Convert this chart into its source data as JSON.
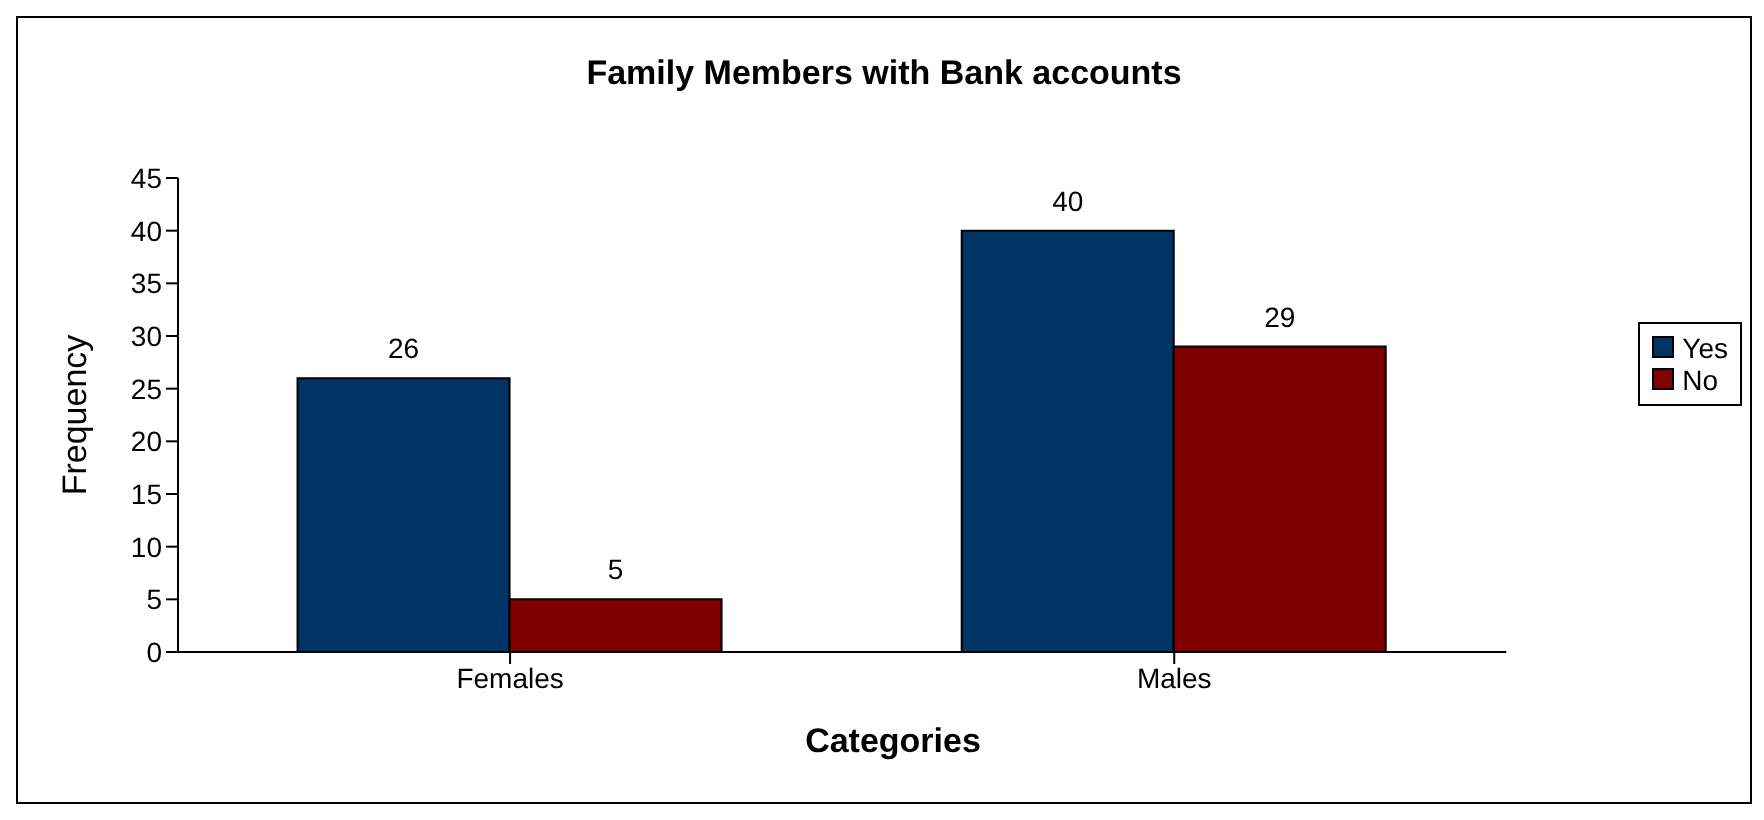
{
  "chart_data": {
    "type": "bar",
    "title": "Family Members with Bank accounts",
    "xlabel": "Categories",
    "ylabel": "Frequency",
    "categories": [
      "Females",
      "Males"
    ],
    "series": [
      {
        "name": "Yes",
        "color": "#003366",
        "values": [
          26,
          40
        ]
      },
      {
        "name": "No",
        "color": "#800000",
        "values": [
          5,
          29
        ]
      }
    ],
    "ylim": [
      0,
      45
    ],
    "yticks": [
      0,
      5,
      10,
      15,
      20,
      25,
      30,
      35,
      40,
      45
    ],
    "grid": false,
    "legend": "right",
    "data_labels": true
  }
}
